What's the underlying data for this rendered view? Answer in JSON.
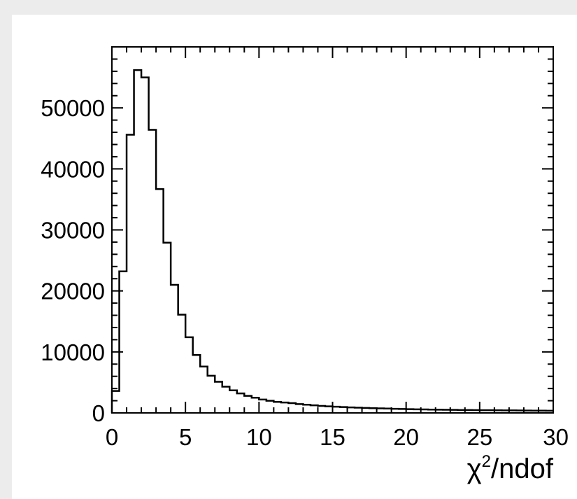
{
  "chart_data": {
    "type": "histogram",
    "title": "",
    "xlabel": "χ²/ndof",
    "xlabel_main": "χ",
    "xlabel_sup": "2",
    "xlabel_tail": "/ndof",
    "ylabel": "",
    "xlim": [
      0,
      30
    ],
    "ylim": [
      0,
      60000
    ],
    "x_ticks": [
      0,
      5,
      10,
      15,
      20,
      25,
      30
    ],
    "x_tick_labels": [
      "0",
      "5",
      "10",
      "15",
      "20",
      "25",
      "30"
    ],
    "y_ticks": [
      0,
      10000,
      20000,
      30000,
      40000,
      50000
    ],
    "y_tick_labels": [
      "0",
      "10000",
      "20000",
      "30000",
      "40000",
      "50000"
    ],
    "bin_width": 0.5,
    "bin_edges_start": 0,
    "values": [
      3600,
      23200,
      45600,
      56200,
      55000,
      46400,
      36700,
      27900,
      21000,
      16100,
      12400,
      9500,
      7600,
      6100,
      5100,
      4300,
      3700,
      3200,
      2800,
      2500,
      2200,
      2000,
      1800,
      1700,
      1600,
      1450,
      1350,
      1250,
      1150,
      1080,
      1020,
      960,
      910,
      860,
      820,
      780,
      740,
      710,
      680,
      650,
      620,
      590,
      570,
      550,
      530,
      510,
      500,
      480,
      470,
      460,
      450,
      440,
      430,
      420,
      410,
      400,
      390,
      380,
      370,
      360
    ],
    "grid": false,
    "legend": "none",
    "colors": {
      "background": "#ececec",
      "plot_area": "#ffffff",
      "line": "#000000"
    }
  }
}
